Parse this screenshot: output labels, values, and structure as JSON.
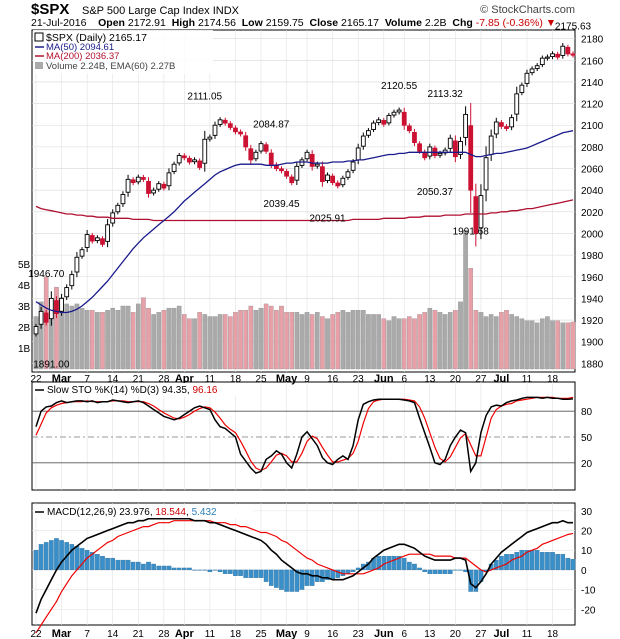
{
  "header": {
    "symbol": "$SPX",
    "name": "S&P 500 Large Cap Index",
    "exchange": "INDX",
    "logo": "© StockCharts.com",
    "date": "21-Jul-2016",
    "open_label": "Open",
    "open": "2172.91",
    "high_label": "High",
    "high": "2174.56",
    "low_label": "Low",
    "low": "2159.75",
    "close_label": "Close",
    "close": "2165.17",
    "volume_label": "Volume",
    "volume": "2.2B",
    "chg_label": "Chg",
    "chg": "-7.85 (-0.36%)",
    "down_arrow": "▼"
  },
  "legend": {
    "price": "$SPX (Daily) 2165.17",
    "ma50": "MA(50) 2094.61",
    "ma200": "MA(200) 2036.37",
    "volume": "Volume 2.24B, EMA(60) 2.27B"
  },
  "colors": {
    "up": "#000000",
    "down": "#cc1133",
    "ma50": "#1a1a8c",
    "ma200": "#b01030",
    "vol_up": "#aaaaaa",
    "vol_down": "#e8a0a8",
    "macd_hist": "#3a8fc8",
    "signal": "#ee0000"
  },
  "sto_panel": {
    "title": "Slow STO %K(14) %D(3)",
    "k_value": "94.35",
    "d_value": "96.16"
  },
  "macd_panel": {
    "title": "MACD(12,26,9)",
    "macd_value": "23.976",
    "signal_value": "18.544",
    "hist_value": "5.432"
  },
  "chart_data": {
    "type": "candlestick",
    "y_axis": {
      "range": [
        1872,
        2188
      ],
      "ticks": [
        1880,
        1900,
        1920,
        1940,
        1960,
        1980,
        2000,
        2020,
        2040,
        2060,
        2080,
        2100,
        2120,
        2140,
        2160,
        2180
      ]
    },
    "volume_axis": {
      "tick_labels": [
        "5B",
        "4B",
        "3B",
        "2B",
        "1B"
      ],
      "tick_values": [
        5,
        4,
        3,
        2,
        1
      ]
    },
    "x_axis": {
      "labels": [
        "22",
        "Mar",
        "7",
        "14",
        "21",
        "28",
        "Apr",
        "11",
        "18",
        "25",
        "May",
        "9",
        "16",
        "23",
        "Jun",
        "6",
        "13",
        "20",
        "27",
        "Jul",
        "11",
        "18"
      ],
      "label_index": [
        0,
        5,
        10,
        15,
        20,
        25,
        29,
        34,
        39,
        44,
        49,
        53,
        58,
        63,
        68,
        72,
        77,
        82,
        87,
        91,
        96,
        101
      ]
    },
    "annotations": [
      {
        "text": "1946.70",
        "i": 2,
        "price": 1946.7
      },
      {
        "text": "1891.00",
        "i": 3,
        "price": 1891.0
      },
      {
        "text": "2111.05",
        "i": 33,
        "price": 2111.05
      },
      {
        "text": "2084.87",
        "i": 46,
        "price": 2084.87
      },
      {
        "text": "2039.45",
        "i": 48,
        "price": 2039.45
      },
      {
        "text": "2025.91",
        "i": 57,
        "price": 2025.91
      },
      {
        "text": "2120.55",
        "i": 71,
        "price": 2120.55
      },
      {
        "text": "2113.32",
        "i": 80,
        "price": 2113.32
      },
      {
        "text": "2050.37",
        "i": 78,
        "price": 2050.37
      },
      {
        "text": "1991.68",
        "i": 85,
        "price": 1991.68
      },
      {
        "text": "2175.63",
        "i": 105,
        "price": 2175.63
      }
    ],
    "close": [
      1914,
      1928,
      1918,
      1940,
      1926,
      1940,
      1950,
      1962,
      1978,
      1985,
      1999,
      1993,
      1996,
      1990,
      2008,
      2019,
      2026,
      2036,
      2050,
      2047,
      2052,
      2050,
      2037,
      2040,
      2046,
      2042,
      2056,
      2064,
      2072,
      2070,
      2066,
      2068,
      2061,
      2087,
      2089,
      2100,
      2105,
      2102,
      2098,
      2094,
      2092,
      2080,
      2068,
      2075,
      2083,
      2076,
      2064,
      2060,
      2058,
      2053,
      2047,
      2062,
      2068,
      2075,
      2062,
      2064,
      2048,
      2054,
      2047,
      2044,
      2051,
      2057,
      2066,
      2079,
      2090,
      2095,
      2102,
      2105,
      2101,
      2109,
      2112,
      2114,
      2100,
      2095,
      2084,
      2076,
      2070,
      2080,
      2072,
      2074,
      2077,
      2088,
      2071,
      2085,
      2110,
      2040,
      2000,
      2035,
      2070,
      2090,
      2103,
      2099,
      2097,
      2107,
      2129,
      2137,
      2148,
      2152,
      2155,
      2162,
      2163,
      2166,
      2163,
      2173,
      2166,
      2165
    ],
    "ma50": [
      1937,
      1934,
      1931,
      1929,
      1928,
      1927,
      1927,
      1928,
      1930,
      1933,
      1937,
      1941,
      1946,
      1951,
      1956,
      1962,
      1968,
      1974,
      1980,
      1986,
      1991,
      1996,
      2000,
      2004,
      2008,
      2012,
      2016,
      2020,
      2025,
      2030,
      2034,
      2038,
      2042,
      2046,
      2050,
      2054,
      2057,
      2059,
      2061,
      2063,
      2064,
      2064,
      2064,
      2064,
      2064,
      2063,
      2063,
      2063,
      2064,
      2065,
      2065,
      2066,
      2066,
      2066,
      2065,
      2065,
      2065,
      2065,
      2066,
      2066,
      2066,
      2067,
      2067,
      2068,
      2068,
      2069,
      2070,
      2071,
      2072,
      2073,
      2073,
      2074,
      2074,
      2075,
      2075,
      2075,
      2075,
      2075,
      2075,
      2075,
      2075,
      2075,
      2075,
      2075,
      2075,
      2073,
      2071,
      2071,
      2072,
      2073,
      2074,
      2074,
      2075,
      2076,
      2077,
      2078,
      2079,
      2081,
      2083,
      2085,
      2087,
      2089,
      2091,
      2093,
      2094,
      2095
    ],
    "ma200": [
      2025,
      2023,
      2022,
      2021,
      2020,
      2019,
      2018,
      2018,
      2017,
      2017,
      2016,
      2016,
      2015,
      2015,
      2015,
      2014,
      2014,
      2014,
      2014,
      2013,
      2013,
      2013,
      2013,
      2012,
      2012,
      2012,
      2012,
      2012,
      2012,
      2012,
      2012,
      2012,
      2012,
      2012,
      2012,
      2012,
      2012,
      2012,
      2012,
      2012,
      2012,
      2012,
      2012,
      2012,
      2012,
      2012,
      2012,
      2012,
      2012,
      2012,
      2012,
      2012,
      2012,
      2012,
      2012,
      2012,
      2012,
      2012,
      2012,
      2012,
      2012,
      2012,
      2013,
      2013,
      2013,
      2013,
      2013,
      2013,
      2014,
      2014,
      2014,
      2014,
      2014,
      2015,
      2015,
      2015,
      2016,
      2016,
      2016,
      2016,
      2017,
      2017,
      2017,
      2017,
      2018,
      2018,
      2018,
      2018,
      2018,
      2019,
      2019,
      2020,
      2020,
      2021,
      2021,
      2022,
      2023,
      2023,
      2024,
      2025,
      2026,
      2027,
      2028,
      2029,
      2030,
      2031
    ],
    "volume_billions": [
      2.5,
      3.2,
      4.4,
      3.3,
      3.9,
      3.4,
      3.1,
      3.0,
      3.1,
      2.9,
      2.8,
      2.8,
      2.7,
      2.7,
      2.8,
      2.9,
      2.8,
      3.0,
      3.0,
      2.7,
      3.1,
      3.4,
      2.9,
      2.6,
      2.7,
      2.8,
      2.9,
      2.9,
      3.0,
      2.6,
      2.4,
      2.4,
      2.7,
      2.6,
      2.5,
      2.5,
      2.6,
      2.6,
      2.5,
      2.7,
      2.8,
      2.8,
      3.0,
      2.8,
      2.9,
      3.1,
      3.0,
      2.8,
      3.0,
      2.7,
      2.7,
      2.7,
      2.6,
      2.7,
      2.6,
      2.7,
      2.5,
      2.4,
      2.6,
      2.7,
      2.8,
      2.7,
      2.8,
      2.8,
      2.8,
      2.6,
      2.6,
      2.6,
      2.4,
      2.3,
      2.5,
      2.4,
      2.4,
      2.5,
      2.4,
      2.6,
      2.7,
      2.9,
      2.8,
      2.7,
      2.6,
      2.7,
      2.8,
      3.2,
      6.6,
      4.8,
      2.8,
      2.7,
      2.5,
      2.6,
      2.5,
      2.7,
      2.8,
      2.6,
      2.5,
      2.4,
      2.3,
      2.3,
      2.2,
      2.4,
      2.5,
      2.3,
      2.3,
      2.2,
      2.2,
      2.24
    ],
    "sto_k": [
      62,
      80,
      85,
      86,
      90,
      92,
      90,
      91,
      92,
      92,
      91,
      92,
      90,
      91,
      91,
      93,
      92,
      91,
      90,
      91,
      92,
      90,
      86,
      82,
      78,
      74,
      72,
      70,
      72,
      76,
      80,
      84,
      86,
      84,
      82,
      70,
      62,
      60,
      55,
      50,
      30,
      22,
      14,
      8,
      10,
      24,
      28,
      34,
      30,
      20,
      14,
      30,
      50,
      56,
      48,
      40,
      26,
      20,
      18,
      24,
      28,
      24,
      40,
      70,
      88,
      91,
      93,
      94,
      94,
      94,
      94,
      94,
      93,
      92,
      90,
      72,
      55,
      38,
      20,
      18,
      24,
      40,
      50,
      58,
      55,
      10,
      20,
      55,
      75,
      85,
      87,
      86,
      90,
      92,
      93,
      95,
      96,
      96,
      96,
      95,
      96,
      95,
      95,
      94,
      94,
      94.35
    ],
    "sto_d": [
      52,
      65,
      78,
      84,
      87,
      89,
      90,
      91,
      91,
      91,
      92,
      91,
      91,
      91,
      91,
      92,
      92,
      92,
      91,
      91,
      91,
      91,
      89,
      86,
      82,
      78,
      75,
      72,
      71,
      73,
      76,
      80,
      83,
      85,
      84,
      79,
      72,
      64,
      59,
      55,
      45,
      34,
      22,
      14,
      11,
      14,
      21,
      29,
      31,
      28,
      21,
      21,
      31,
      45,
      51,
      48,
      38,
      29,
      21,
      21,
      23,
      25,
      31,
      45,
      66,
      83,
      91,
      93,
      94,
      94,
      94,
      94,
      94,
      93,
      92,
      85,
      72,
      55,
      38,
      25,
      21,
      27,
      38,
      49,
      54,
      41,
      28,
      28,
      50,
      72,
      82,
      86,
      88,
      89,
      92,
      93,
      94,
      95,
      96,
      96,
      96,
      96,
      95,
      95,
      95,
      96.16
    ],
    "macd": [
      -22,
      -15,
      -10,
      -5,
      0,
      4,
      7,
      10,
      12,
      14,
      16,
      17,
      18,
      19,
      20,
      21,
      22,
      23,
      24,
      24,
      25,
      25,
      26,
      26,
      26,
      26,
      26,
      26,
      26,
      26,
      26,
      25,
      25,
      25,
      24,
      24,
      23,
      22,
      21,
      20,
      19,
      18,
      17,
      16,
      15,
      13,
      10,
      8,
      5,
      3,
      1,
      -1,
      -2,
      -2,
      -3,
      -3,
      -4,
      -4,
      -5,
      -5,
      -5,
      -4,
      -3,
      -1,
      1,
      3,
      6,
      8,
      10,
      11,
      12,
      13,
      13,
      12,
      11,
      9,
      7,
      6,
      5,
      5,
      5,
      5,
      6,
      6,
      5,
      -7,
      -9,
      -6,
      -2,
      3,
      6,
      9,
      11,
      13,
      15,
      17,
      19,
      20,
      21,
      22,
      23,
      24,
      24,
      25,
      24,
      23.976
    ],
    "signal": [
      -32,
      -28,
      -24,
      -20,
      -16,
      -11,
      -7,
      -3,
      0,
      3,
      6,
      8,
      10,
      12,
      14,
      15,
      17,
      18,
      19,
      20,
      21,
      22,
      22,
      23,
      24,
      24,
      24,
      25,
      25,
      25,
      25,
      25,
      25,
      25,
      25,
      24,
      24,
      24,
      23,
      23,
      22,
      22,
      21,
      20,
      19,
      19,
      18,
      17,
      15,
      14,
      12,
      10,
      8,
      6,
      5,
      3,
      2,
      1,
      0,
      -1,
      -2,
      -2,
      -2,
      -2,
      -2,
      -1,
      0,
      1,
      3,
      4,
      5,
      6,
      7,
      8,
      8,
      8,
      8,
      8,
      7,
      7,
      7,
      7,
      6,
      6,
      6,
      4,
      2,
      0,
      -1,
      0,
      1,
      2,
      3,
      5,
      6,
      7,
      9,
      10,
      11,
      13,
      14,
      15,
      16,
      17,
      18,
      18.544
    ],
    "hist": [
      10,
      13,
      14,
      15,
      16,
      15,
      14,
      13,
      12,
      11,
      10,
      9,
      8,
      7,
      6,
      6,
      5,
      5,
      5,
      4,
      4,
      3,
      4,
      3,
      2,
      2,
      2,
      1,
      1,
      1,
      1,
      0,
      0,
      0,
      -1,
      0,
      -1,
      -2,
      -2,
      -3,
      -3,
      -4,
      -4,
      -4,
      -4,
      -6,
      -8,
      -9,
      -10,
      -11,
      -11,
      -11,
      -10,
      -8,
      -8,
      -6,
      -6,
      -5,
      -5,
      -4,
      -3,
      -2,
      -1,
      1,
      3,
      4,
      6,
      7,
      7,
      7,
      7,
      7,
      6,
      4,
      3,
      1,
      -1,
      -2,
      -2,
      -2,
      -2,
      -2,
      0,
      0,
      -1,
      -11,
      -11,
      -6,
      -1,
      3,
      5,
      7,
      8,
      8,
      9,
      10,
      10,
      10,
      10,
      9,
      9,
      9,
      8,
      8,
      6,
      5.432
    ],
    "sto_axis": {
      "range": [
        0,
        100
      ],
      "ticks": [
        20,
        50,
        80
      ]
    },
    "macd_axis": {
      "range": [
        -28,
        34
      ],
      "ticks": [
        -20,
        -10,
        0,
        10,
        20,
        30
      ]
    }
  }
}
